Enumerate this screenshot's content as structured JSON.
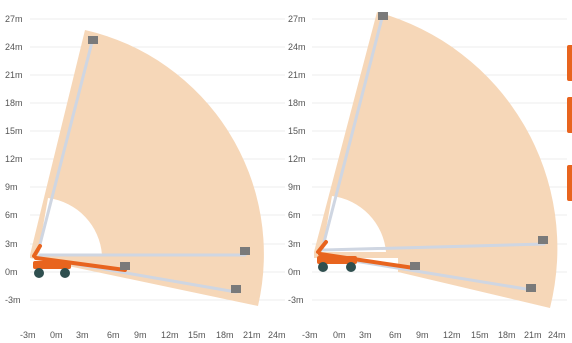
{
  "panels": [
    {
      "id": "left",
      "y_ticks": [
        "27m",
        "24m",
        "21m",
        "18m",
        "15m",
        "12m",
        "9m",
        "6m",
        "3m",
        "0m",
        "-3m"
      ],
      "x_ticks": [
        "-3m",
        "0m",
        "3m",
        "6m",
        "9m",
        "12m",
        "15m",
        "18m",
        "21m",
        "24m"
      ]
    },
    {
      "id": "right",
      "y_ticks": [
        "27m",
        "24m",
        "21m",
        "18m",
        "15m",
        "12m",
        "9m",
        "6m",
        "3m",
        "0m",
        "-3m"
      ],
      "x_ticks": [
        "-3m",
        "0m",
        "3m",
        "6m",
        "9m",
        "12m",
        "15m",
        "18m",
        "21m",
        "24m"
      ]
    }
  ],
  "colors": {
    "envelope": "#f6d7b8",
    "boom": "#e8641e",
    "boom_arm": "#cfd6e2",
    "machine": "#e8641e",
    "wheel": "#2f4f4f",
    "grid": "#ececec",
    "label": "#555555",
    "side_tab": "#e8641e"
  },
  "side_tabs": 3
}
